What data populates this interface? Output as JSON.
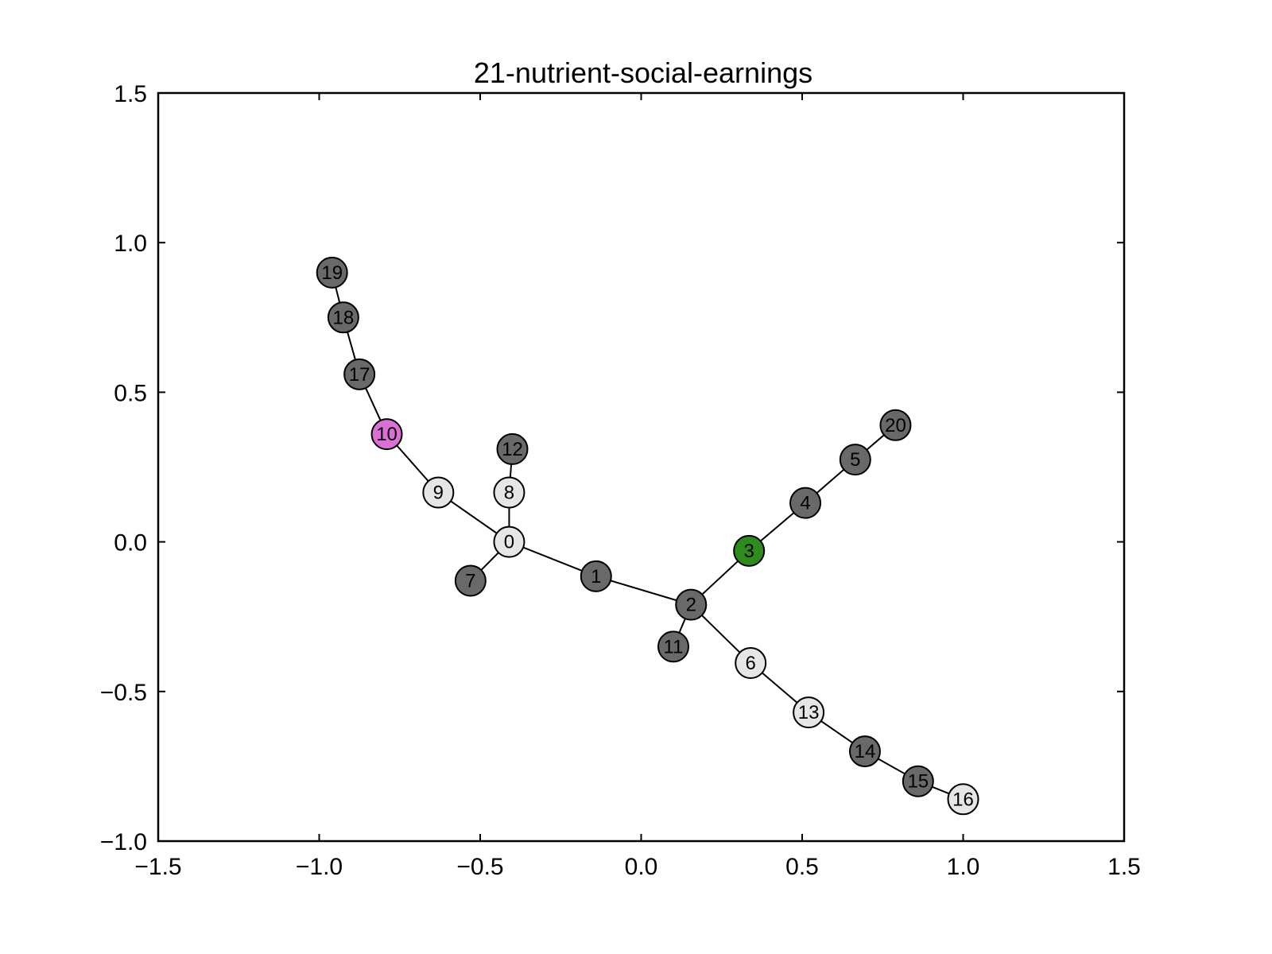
{
  "chart_data": {
    "type": "network",
    "title": "21-nutrient-social-earnings",
    "xlim": [
      -1.5,
      1.5
    ],
    "ylim": [
      -1.0,
      1.5
    ],
    "xticks": [
      -1.5,
      -1.0,
      -0.5,
      0.0,
      0.5,
      1.0,
      1.5
    ],
    "yticks": [
      -1.0,
      -0.5,
      0.0,
      0.5,
      1.0,
      1.5
    ],
    "xtick_labels": [
      "−1.5",
      "−1.0",
      "−0.5",
      "0.0",
      "0.5",
      "1.0",
      "1.5"
    ],
    "ytick_labels": [
      "−1.0",
      "−0.5",
      "0.0",
      "0.5",
      "1.0",
      "1.5"
    ],
    "grid": false,
    "colors": {
      "dark": "#696969",
      "light": "#e6e6e6",
      "magenta": "#da70d6",
      "green": "#2e8b1e",
      "edge": "#000000"
    },
    "nodes": [
      {
        "id": "0",
        "x": -0.41,
        "y": 0.0,
        "color": "light"
      },
      {
        "id": "1",
        "x": -0.14,
        "y": -0.115,
        "color": "dark"
      },
      {
        "id": "2",
        "x": 0.155,
        "y": -0.21,
        "color": "dark"
      },
      {
        "id": "3",
        "x": 0.335,
        "y": -0.03,
        "color": "green"
      },
      {
        "id": "4",
        "x": 0.51,
        "y": 0.13,
        "color": "dark"
      },
      {
        "id": "5",
        "x": 0.665,
        "y": 0.275,
        "color": "dark"
      },
      {
        "id": "6",
        "x": 0.34,
        "y": -0.405,
        "color": "light"
      },
      {
        "id": "7",
        "x": -0.53,
        "y": -0.13,
        "color": "dark"
      },
      {
        "id": "8",
        "x": -0.41,
        "y": 0.165,
        "color": "light"
      },
      {
        "id": "9",
        "x": -0.63,
        "y": 0.165,
        "color": "light"
      },
      {
        "id": "10",
        "x": -0.79,
        "y": 0.36,
        "color": "magenta"
      },
      {
        "id": "11",
        "x": 0.1,
        "y": -0.35,
        "color": "dark"
      },
      {
        "id": "12",
        "x": -0.4,
        "y": 0.31,
        "color": "dark"
      },
      {
        "id": "13",
        "x": 0.52,
        "y": -0.57,
        "color": "light"
      },
      {
        "id": "14",
        "x": 0.695,
        "y": -0.7,
        "color": "dark"
      },
      {
        "id": "15",
        "x": 0.86,
        "y": -0.8,
        "color": "dark"
      },
      {
        "id": "16",
        "x": 1.0,
        "y": -0.86,
        "color": "light"
      },
      {
        "id": "17",
        "x": -0.875,
        "y": 0.56,
        "color": "dark"
      },
      {
        "id": "18",
        "x": -0.925,
        "y": 0.75,
        "color": "dark"
      },
      {
        "id": "19",
        "x": -0.96,
        "y": 0.9,
        "color": "dark"
      },
      {
        "id": "20",
        "x": 0.79,
        "y": 0.39,
        "color": "dark"
      }
    ],
    "edges": [
      [
        "19",
        "18"
      ],
      [
        "18",
        "17"
      ],
      [
        "17",
        "10"
      ],
      [
        "10",
        "9"
      ],
      [
        "9",
        "0"
      ],
      [
        "0",
        "8"
      ],
      [
        "8",
        "12"
      ],
      [
        "0",
        "7"
      ],
      [
        "0",
        "1"
      ],
      [
        "1",
        "2"
      ],
      [
        "2",
        "11"
      ],
      [
        "2",
        "3"
      ],
      [
        "3",
        "4"
      ],
      [
        "4",
        "5"
      ],
      [
        "5",
        "20"
      ],
      [
        "2",
        "6"
      ],
      [
        "6",
        "13"
      ],
      [
        "13",
        "14"
      ],
      [
        "14",
        "15"
      ],
      [
        "15",
        "16"
      ]
    ]
  }
}
